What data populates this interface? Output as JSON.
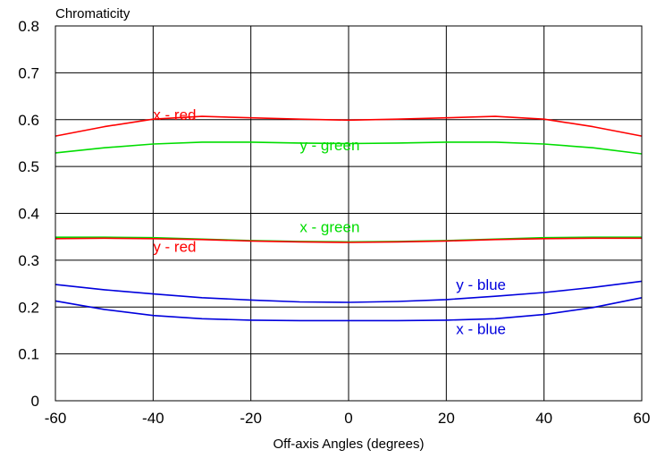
{
  "chart_data": {
    "type": "line",
    "title": "",
    "ylabel": "Chromaticity",
    "xlabel": "Off-axis Angles (degrees)",
    "xlim": [
      -60,
      60
    ],
    "ylim": [
      0,
      0.8
    ],
    "xticks": [
      -60,
      -40,
      -20,
      0,
      20,
      40,
      60
    ],
    "xtick_labels": [
      "-60",
      "-40",
      "-20",
      "0",
      "20",
      "40",
      "60"
    ],
    "yticks": [
      0,
      0.1,
      0.2,
      0.3,
      0.4,
      0.5,
      0.6,
      0.7,
      0.8
    ],
    "ytick_labels": [
      "0",
      "0.1",
      "0.2",
      "0.3",
      "0.4",
      "0.5",
      "0.6",
      "0.7",
      "0.8"
    ],
    "grid": true,
    "x": [
      -60,
      -50,
      -40,
      -30,
      -20,
      -10,
      0,
      10,
      20,
      30,
      40,
      50,
      60
    ],
    "series": [
      {
        "name": "x - red",
        "color": "#ff0000",
        "values": [
          0.565,
          0.585,
          0.601,
          0.607,
          0.604,
          0.601,
          0.599,
          0.601,
          0.604,
          0.607,
          0.601,
          0.585,
          0.565
        ],
        "label_at": [
          -40,
          0.6
        ]
      },
      {
        "name": "y - green",
        "color": "#00dd00",
        "values": [
          0.529,
          0.54,
          0.548,
          0.552,
          0.552,
          0.55,
          0.549,
          0.55,
          0.552,
          0.552,
          0.548,
          0.54,
          0.527
        ],
        "label_at": [
          -10,
          0.535
        ]
      },
      {
        "name": "x - green",
        "color": "#00dd00",
        "values": [
          0.349,
          0.349,
          0.348,
          0.345,
          0.342,
          0.34,
          0.339,
          0.34,
          0.342,
          0.345,
          0.348,
          0.349,
          0.349
        ],
        "label_at": [
          -10,
          0.36
        ]
      },
      {
        "name": "y - red",
        "color": "#ff0000",
        "values": [
          0.346,
          0.347,
          0.346,
          0.344,
          0.341,
          0.339,
          0.338,
          0.339,
          0.341,
          0.344,
          0.346,
          0.347,
          0.347
        ],
        "label_at": [
          -40,
          0.318
        ]
      },
      {
        "name": "y - blue",
        "color": "#0000dd",
        "values": [
          0.248,
          0.237,
          0.228,
          0.22,
          0.215,
          0.211,
          0.21,
          0.212,
          0.216,
          0.223,
          0.231,
          0.242,
          0.255
        ],
        "label_at": [
          22,
          0.237
        ]
      },
      {
        "name": "x - blue",
        "color": "#0000dd",
        "values": [
          0.213,
          0.195,
          0.182,
          0.175,
          0.172,
          0.171,
          0.171,
          0.171,
          0.172,
          0.175,
          0.184,
          0.199,
          0.22
        ],
        "label_at": [
          22,
          0.142
        ]
      }
    ]
  }
}
